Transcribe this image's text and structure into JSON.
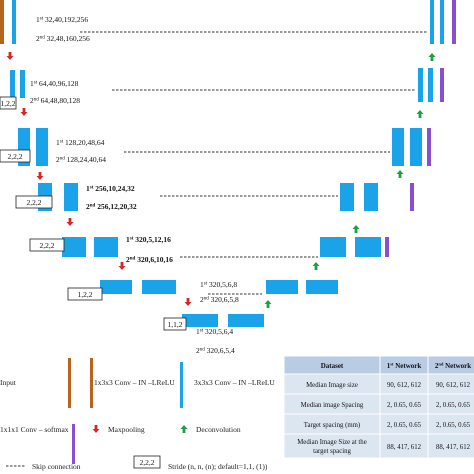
{
  "colors": {
    "conv": "#1aa3e8",
    "input": "#b8641e",
    "output": "#8a4fd0",
    "maxpool": "#d62828",
    "deconv": "#1e9e45",
    "skip": "#333333",
    "table_header": "#b8cce4",
    "table_row": "#dce6f1"
  },
  "levels": [
    {
      "sup1": "st",
      "label1": "32,40,192,256",
      "sup2": "nd",
      "label2": "32,48,160,256"
    },
    {
      "sup1": "st",
      "label1": "64,40,96,128",
      "sup2": "nd",
      "label2": "64,48,80,128"
    },
    {
      "sup1": "st",
      "label1": "128,20,48,64",
      "sup2": "nd",
      "label2": "128,24,40,64"
    },
    {
      "sup1": "st",
      "label1": "256,10,24,32",
      "sup2": "nd",
      "label2": "256,12,20,32"
    },
    {
      "sup1": "st",
      "label1": "320,5,12,16",
      "sup2": "nd",
      "label2": "320,6,10,16"
    },
    {
      "sup1": "st",
      "label1": "320,5,6,8",
      "sup2": "nd",
      "label2": "320,6,5,8"
    },
    {
      "sup1": "st",
      "label1": "320,5,6,4",
      "sup2": "nd",
      "label2": "320,6,5,4"
    }
  ],
  "level_prefix": [
    "1",
    "2"
  ],
  "strides": [
    "1,2,2",
    "2,2,2",
    "2,2,2",
    "2,2,2",
    "1,2,2",
    "1,1,2"
  ],
  "legend": {
    "input": "Input",
    "conv1": "1x3x3 Conv – IN –LReLU",
    "conv3": "3x3x3 Conv – IN –LReLU",
    "softmax": "1x1x1 Conv – softmax",
    "maxpool": "Maxpooling",
    "deconv": "Deconvolution",
    "skip": "Skip connection",
    "stride_box": "2,2,2",
    "stride_text": "Stride (n, n, (n); default=1,1, (1))"
  },
  "table": {
    "headers": [
      "Dataset",
      "1st Network",
      "2nd Network"
    ],
    "rows": [
      [
        "Median Image size",
        "90, 612, 612",
        "90, 612, 612"
      ],
      [
        "Median image Spacing",
        "2, 0.65, 0.65",
        "2, 0.65, 0.65"
      ],
      [
        "Target spacing (mm)",
        "2, 0.65, 0.65",
        "2, 0.65, 0.65"
      ],
      [
        "Median Image Size at the target spacing",
        "88, 417, 612",
        "88, 417, 612"
      ]
    ]
  }
}
